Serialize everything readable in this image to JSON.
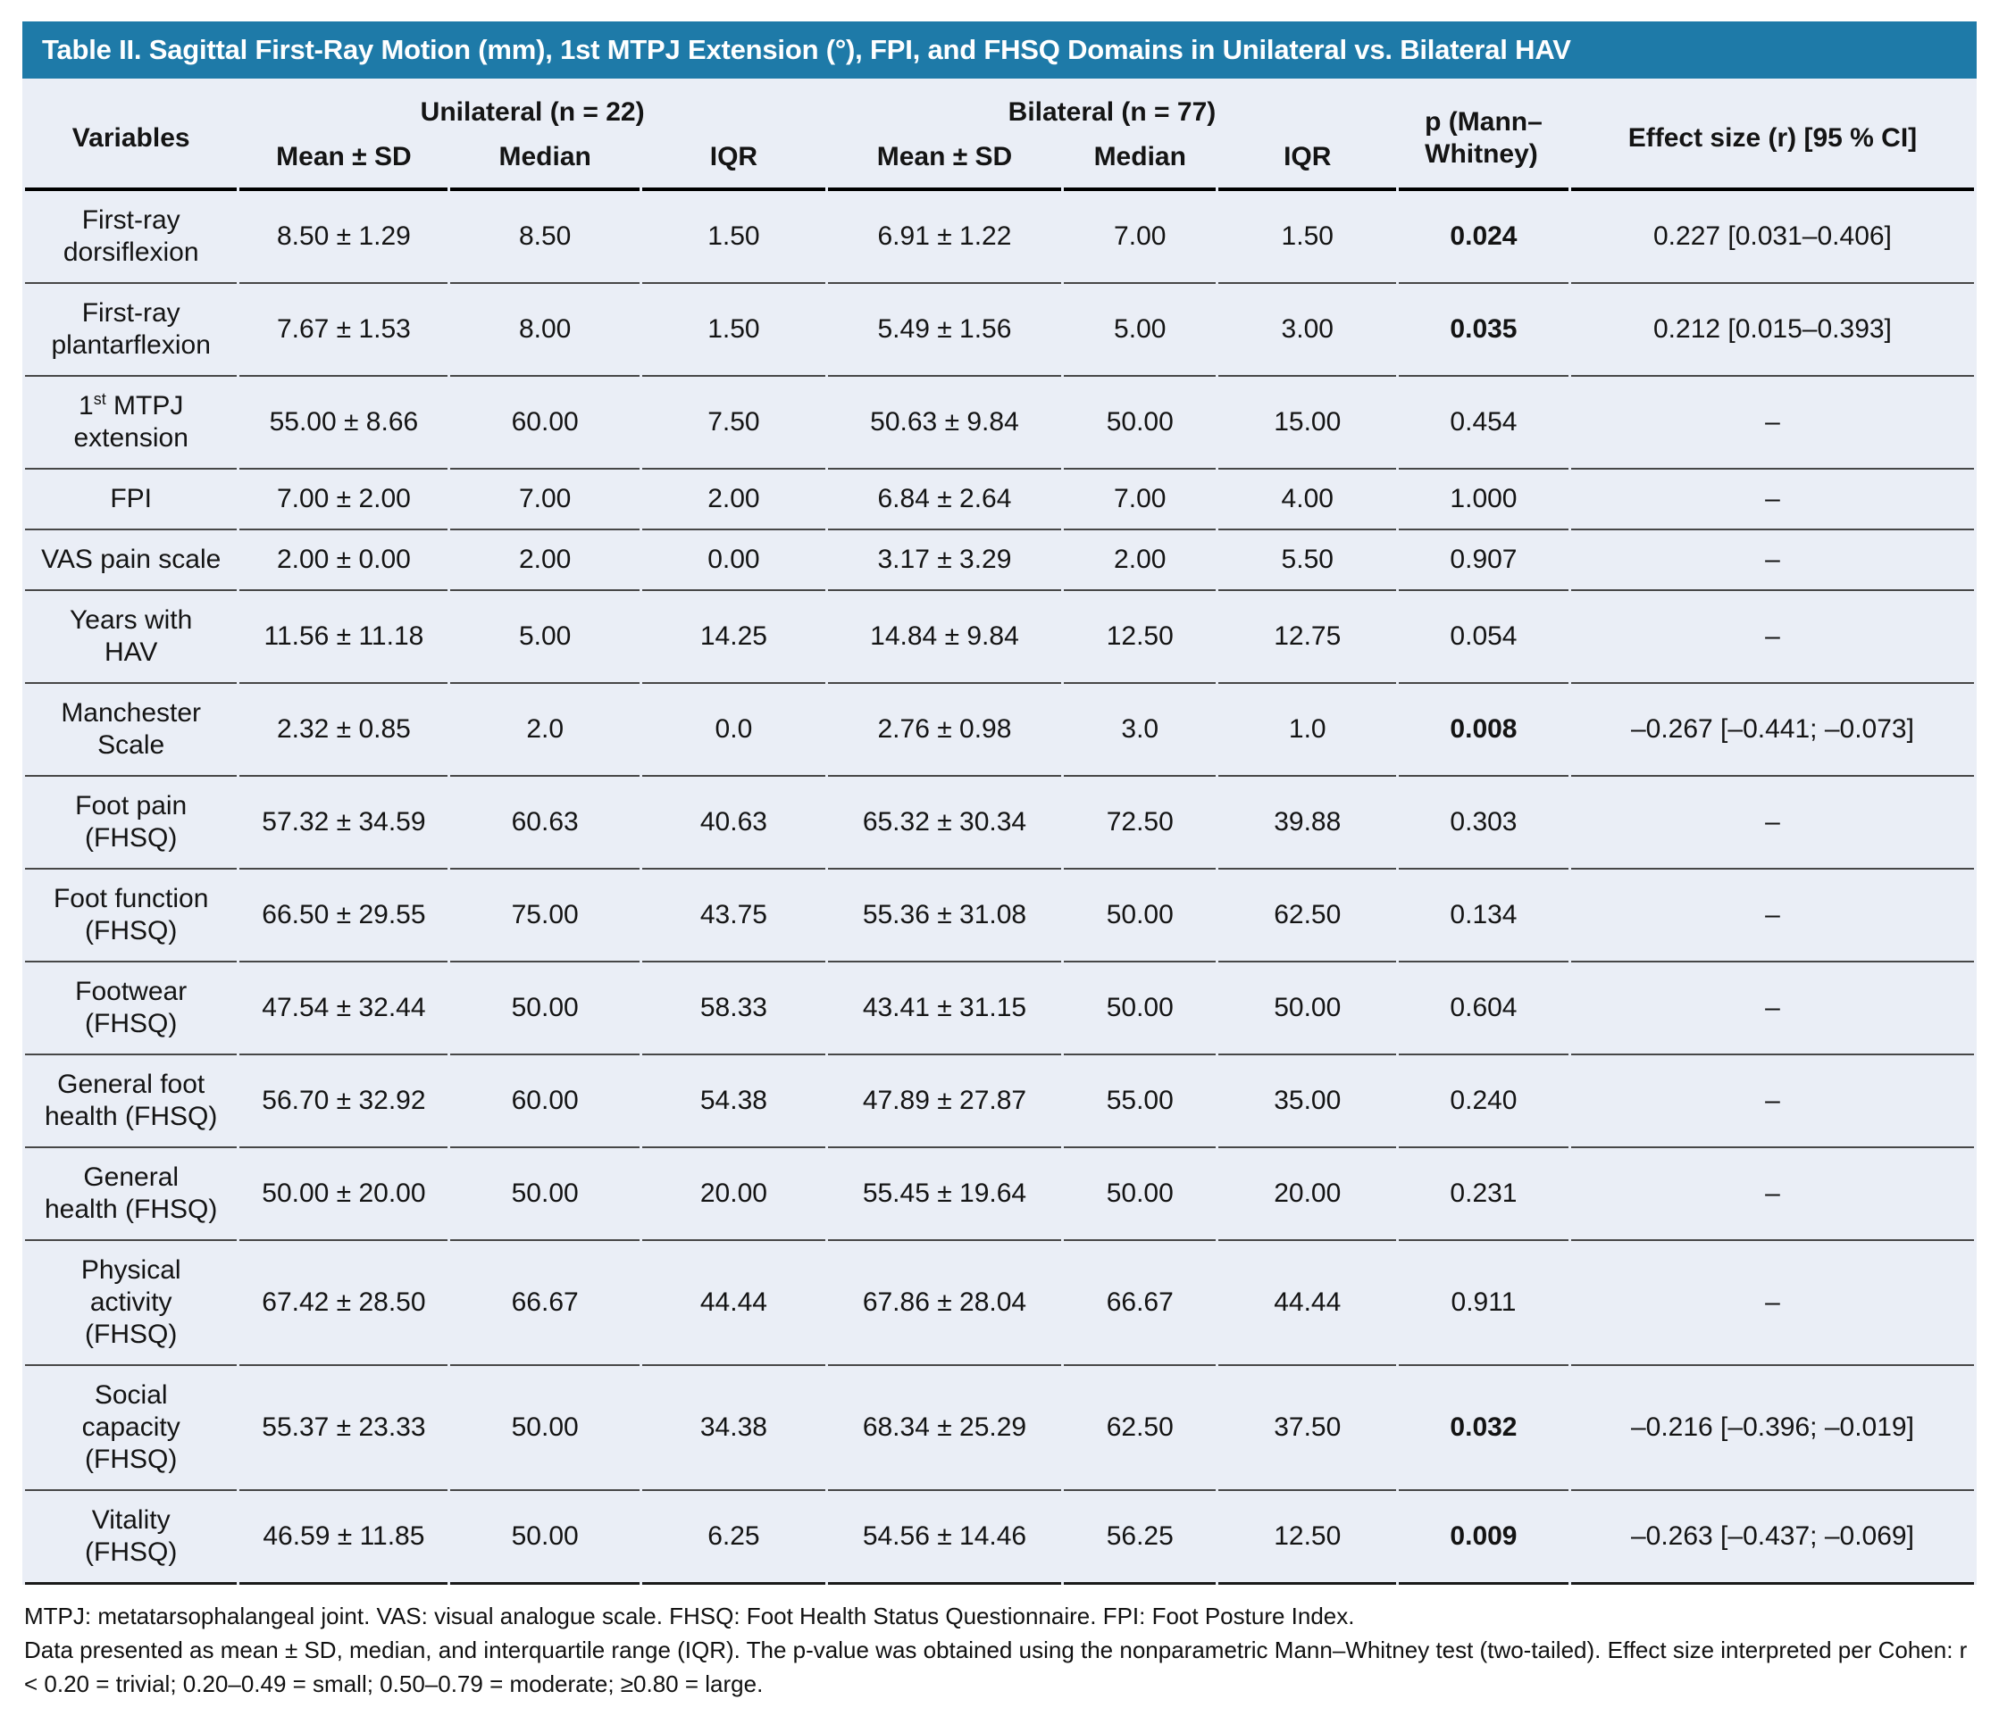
{
  "title": "Table II. Sagittal First-Ray Motion (mm), 1st MTPJ Extension (°), FPI, and FHSQ Domains in Unilateral vs. Bilateral HAV",
  "colors": {
    "accent": "#1e7aa8",
    "table_background": "#eaeef6",
    "title_text": "#ffffff",
    "body_text": "#141414",
    "row_rule": "#474747",
    "heavy_rule": "#000000"
  },
  "header": {
    "variables": "Variables",
    "group_unilateral": "Unilateral (n = 22)",
    "group_bilateral": "Bilateral (n = 77)",
    "sub": [
      "Mean ± SD",
      "Median",
      "IQR",
      "Mean ± SD",
      "Median",
      "IQR"
    ],
    "p": "p (Mann–\nWhitney)",
    "effect": "Effect size (r) [95 % CI]"
  },
  "rows": [
    {
      "variable": "First-ray\ndorsiflexion",
      "cells": [
        "8.50 ± 1.29",
        "8.50",
        "1.50",
        "6.91 ± 1.22",
        "7.00",
        "1.50"
      ],
      "p": "0.024",
      "p_bold": true,
      "effect": "0.227 [0.031–0.406]"
    },
    {
      "variable": "First-ray\nplantarflexion",
      "cells": [
        "7.67 ± 1.53",
        "8.00",
        "1.50",
        "5.49 ± 1.56",
        "5.00",
        "3.00"
      ],
      "p": "0.035",
      "p_bold": true,
      "effect": "0.212 [0.015–0.393]"
    },
    {
      "variable": "1st MTPJ\nextension",
      "ordinal_sup": true,
      "cells": [
        "55.00 ± 8.66",
        "60.00",
        "7.50",
        "50.63 ± 9.84",
        "50.00",
        "15.00"
      ],
      "p": "0.454",
      "p_bold": false,
      "effect": "–"
    },
    {
      "variable": "FPI",
      "cells": [
        "7.00 ± 2.00",
        "7.00",
        "2.00",
        "6.84 ± 2.64",
        "7.00",
        "4.00"
      ],
      "p": "1.000",
      "p_bold": false,
      "effect": "–"
    },
    {
      "variable": "VAS pain scale",
      "cells": [
        "2.00 ± 0.00",
        "2.00",
        "0.00",
        "3.17 ± 3.29",
        "2.00",
        "5.50"
      ],
      "p": "0.907",
      "p_bold": false,
      "effect": "–"
    },
    {
      "variable": "Years with\nHAV",
      "cells": [
        "11.56 ± 11.18",
        "5.00",
        "14.25",
        "14.84 ± 9.84",
        "12.50",
        "12.75"
      ],
      "p": "0.054",
      "p_bold": false,
      "effect": "–"
    },
    {
      "variable": "Manchester\nScale",
      "cells": [
        "2.32 ± 0.85",
        "2.0",
        "0.0",
        "2.76 ± 0.98",
        "3.0",
        "1.0"
      ],
      "p": "0.008",
      "p_bold": true,
      "effect": "–0.267 [–0.441; –0.073]"
    },
    {
      "variable": "Foot pain\n(FHSQ)",
      "cells": [
        "57.32 ± 34.59",
        "60.63",
        "40.63",
        "65.32 ± 30.34",
        "72.50",
        "39.88"
      ],
      "p": "0.303",
      "p_bold": false,
      "effect": "–"
    },
    {
      "variable": "Foot function\n(FHSQ)",
      "cells": [
        "66.50 ± 29.55",
        "75.00",
        "43.75",
        "55.36 ± 31.08",
        "50.00",
        "62.50"
      ],
      "p": "0.134",
      "p_bold": false,
      "effect": "–"
    },
    {
      "variable": "Footwear\n(FHSQ)",
      "cells": [
        "47.54 ± 32.44",
        "50.00",
        "58.33",
        "43.41 ± 31.15",
        "50.00",
        "50.00"
      ],
      "p": "0.604",
      "p_bold": false,
      "effect": "–"
    },
    {
      "variable": "General foot\nhealth (FHSQ)",
      "cells": [
        "56.70 ± 32.92",
        "60.00",
        "54.38",
        "47.89 ± 27.87",
        "55.00",
        "35.00"
      ],
      "p": "0.240",
      "p_bold": false,
      "effect": "–"
    },
    {
      "variable": "General\nhealth (FHSQ)",
      "cells": [
        "50.00 ± 20.00",
        "50.00",
        "20.00",
        "55.45 ± 19.64",
        "50.00",
        "20.00"
      ],
      "p": "0.231",
      "p_bold": false,
      "effect": "–"
    },
    {
      "variable": "Physical\nactivity\n(FHSQ)",
      "cells": [
        "67.42 ± 28.50",
        "66.67",
        "44.44",
        "67.86 ± 28.04",
        "66.67",
        "44.44"
      ],
      "p": "0.911",
      "p_bold": false,
      "effect": "–"
    },
    {
      "variable": "Social\ncapacity\n(FHSQ)",
      "cells": [
        "55.37 ± 23.33",
        "50.00",
        "34.38",
        "68.34 ± 25.29",
        "62.50",
        "37.50"
      ],
      "p": "0.032",
      "p_bold": true,
      "effect": "–0.216 [–0.396; –0.019]"
    },
    {
      "variable": "Vitality\n(FHSQ)",
      "cells": [
        "46.59 ± 11.85",
        "50.00",
        "6.25",
        "54.56 ± 14.46",
        "56.25",
        "12.50"
      ],
      "p": "0.009",
      "p_bold": true,
      "effect": "–0.263 [–0.437; –0.069]"
    }
  ],
  "footnotes": [
    "MTPJ: metatarsophalangeal joint. VAS: visual analogue scale. FHSQ: Foot Health Status Questionnaire. FPI: Foot Posture Index.",
    "Data presented as mean ± SD, median, and interquartile range (IQR). The p-value was obtained using the nonparametric Mann–Whitney test (two-tailed). Effect size interpreted per Cohen: r < 0.20 = trivial; 0.20–0.49 = small; 0.50–0.79 = moderate; ≥0.80 = large."
  ]
}
